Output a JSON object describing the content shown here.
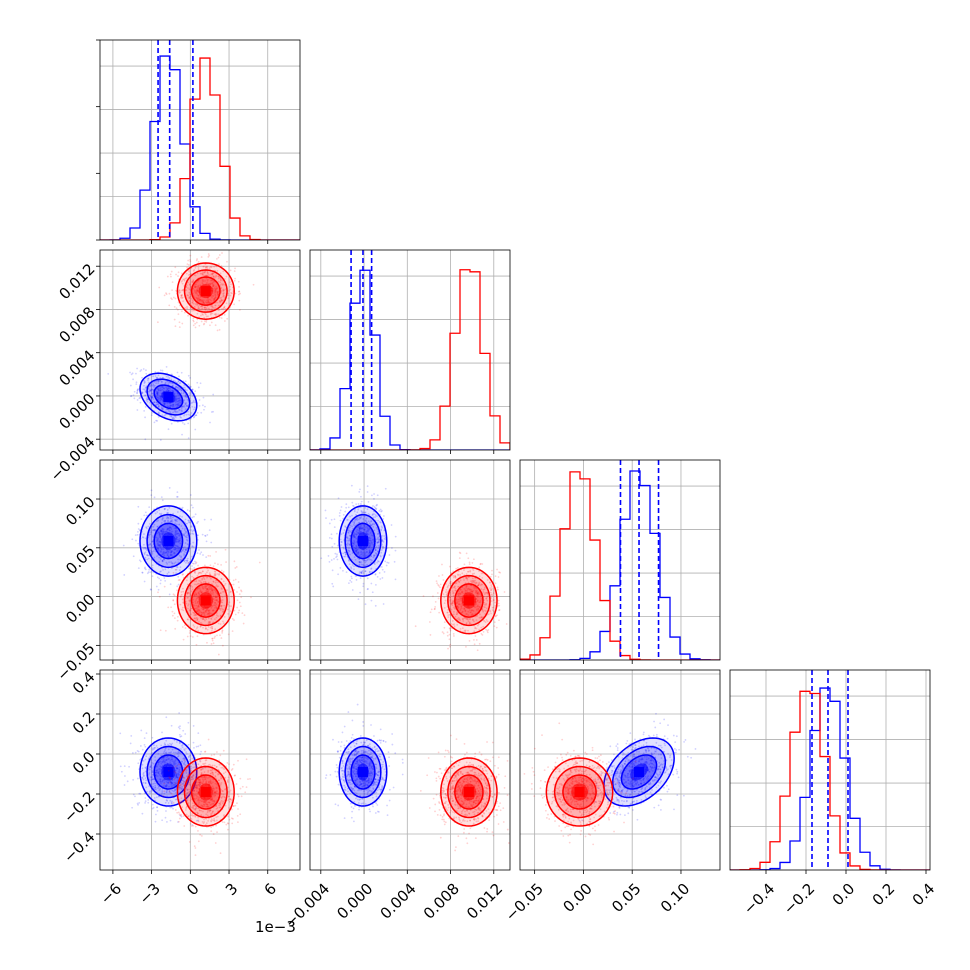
{
  "chart_data": {
    "type": "corner",
    "parameters": 4,
    "series": [
      {
        "color": "#0000ff"
      },
      {
        "color": "#ff0000"
      }
    ],
    "offset_label": "1e−3",
    "axes": [
      {
        "index": 0,
        "range": [
          -7.0,
          8.5
        ],
        "ticks": [
          -6,
          -3,
          0,
          3,
          6
        ],
        "tick_labels": [
          "−6",
          "−3",
          "0",
          "3",
          "6"
        ]
      },
      {
        "index": 1,
        "range": [
          -0.005,
          0.0135
        ],
        "ticks": [
          -0.004,
          0.0,
          0.004,
          0.008,
          0.012
        ],
        "tick_labels": [
          "−0.004",
          "0.000",
          "0.004",
          "0.008",
          "0.012"
        ]
      },
      {
        "index": 2,
        "range": [
          -0.065,
          0.14
        ],
        "ticks": [
          -0.05,
          0.0,
          0.05,
          0.1
        ],
        "tick_labels": [
          "−0.05",
          "0.00",
          "0.05",
          "0.10"
        ]
      },
      {
        "index": 3,
        "range": [
          -0.58,
          0.42
        ],
        "ticks": [
          -0.4,
          -0.2,
          0.0,
          0.2,
          0.4
        ],
        "tick_labels": [
          "−0.4",
          "−0.2",
          "0.0",
          "0.2",
          "0.4"
        ]
      }
    ],
    "distributions": {
      "blue": {
        "means": [
          -1.7,
          -0.0001,
          0.057,
          -0.09
        ],
        "sds": [
          1.1,
          0.0011,
          0.018,
          0.085
        ],
        "quantiles": [
          [
            -2.5,
            -1.6,
            0.2
          ],
          [
            -0.0012,
            -0.0001,
            0.0007
          ],
          [
            0.038,
            0.057,
            0.077
          ],
          [
            -0.17,
            -0.09,
            0.01
          ]
        ],
        "correlations": [
          [
            1,
            -0.35,
            0.0,
            0.0
          ],
          [
            -0.35,
            1,
            0.0,
            0.0
          ],
          [
            0.0,
            0.0,
            1,
            0.4
          ],
          [
            0.0,
            0.0,
            0.4,
            1
          ]
        ]
      },
      "red": {
        "means": [
          1.2,
          0.0097,
          -0.004,
          -0.19
        ],
        "sds": [
          1.1,
          0.0013,
          0.017,
          0.085
        ],
        "correlations": [
          [
            1,
            0.0,
            0.0,
            0.0
          ],
          [
            0.0,
            1,
            0.0,
            0.0
          ],
          [
            0.0,
            0.0,
            1,
            0.0
          ],
          [
            0.0,
            0.0,
            0.0,
            1
          ]
        ]
      }
    },
    "grid": true,
    "contour_levels": 3
  }
}
